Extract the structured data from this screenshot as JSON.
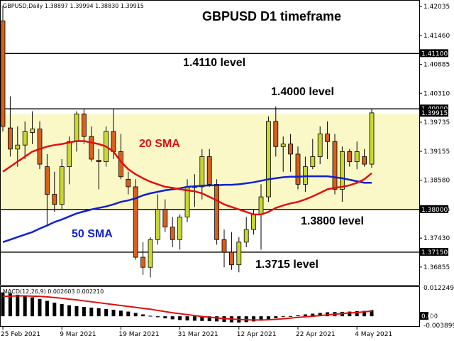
{
  "chart_data": {
    "type": "candlestick",
    "symbol_header": "GBPUSD,Daily  1.38897 1.39994 1.38830 1.39915",
    "title": "GBPUSD D1 timeframe",
    "macd_header": "MACD(12,26,9) 0.002603 0.002210",
    "price_axis_labels": [
      "1.42035",
      "1.41460",
      "1.40885",
      "1.40310",
      "1.39735",
      "1.39155",
      "1.38580",
      "1.38005",
      "1.37430",
      "1.36855"
    ],
    "level_tags": [
      "1.41100",
      "1.40000",
      "1.39915",
      "1.38000",
      "1.37150"
    ],
    "macd_axis_labels": [
      "0.012249",
      "0.00",
      "-0.003899"
    ],
    "date_labels": [
      "25 Feb 2021",
      "9 Mar 2021",
      "19 Mar 2021",
      "31 Mar 2021",
      "12 Apr 2021",
      "22 Apr 2021",
      "4 May 2021"
    ],
    "date_label_index": [
      0,
      8,
      16,
      24,
      32,
      40,
      48
    ],
    "ylim": [
      1.365,
      1.4215
    ],
    "macd_ylim": [
      -0.0042,
      0.0125
    ],
    "zone": [
      1.38,
      1.399
    ],
    "levels": [
      {
        "value": 1.411,
        "text": "1.4110 level"
      },
      {
        "value": 1.4,
        "text": "1.4000 level"
      },
      {
        "value": 1.38,
        "text": "1.3800 level"
      },
      {
        "value": 1.3715,
        "text": "1.3715 level"
      }
    ],
    "sma_labels": {
      "sma20": "20 SMA",
      "sma50": "50 SMA"
    },
    "colors": {
      "bull": "#c8d830",
      "bear": "#d8601c",
      "sma20": "#e01010",
      "sma50": "#1020d0",
      "zone": "#fbf8c8"
    },
    "candles": [
      {
        "o": 1.4175,
        "h": 1.4205,
        "l": 1.3955,
        "c": 1.3965
      },
      {
        "o": 1.3962,
        "h": 1.4025,
        "l": 1.3905,
        "c": 1.392
      },
      {
        "o": 1.392,
        "h": 1.3965,
        "l": 1.3885,
        "c": 1.3928
      },
      {
        "o": 1.3928,
        "h": 1.3975,
        "l": 1.39,
        "c": 1.3955
      },
      {
        "o": 1.3953,
        "h": 1.3995,
        "l": 1.393,
        "c": 1.396
      },
      {
        "o": 1.396,
        "h": 1.3975,
        "l": 1.388,
        "c": 1.389
      },
      {
        "o": 1.3885,
        "h": 1.391,
        "l": 1.377,
        "c": 1.383
      },
      {
        "o": 1.383,
        "h": 1.3875,
        "l": 1.3795,
        "c": 1.381
      },
      {
        "o": 1.381,
        "h": 1.39,
        "l": 1.38,
        "c": 1.3885
      },
      {
        "o": 1.3885,
        "h": 1.3945,
        "l": 1.385,
        "c": 1.3935
      },
      {
        "o": 1.3935,
        "h": 1.3995,
        "l": 1.3915,
        "c": 1.399
      },
      {
        "o": 1.399,
        "h": 1.4,
        "l": 1.393,
        "c": 1.3945
      },
      {
        "o": 1.3945,
        "h": 1.3965,
        "l": 1.3895,
        "c": 1.39
      },
      {
        "o": 1.3898,
        "h": 1.392,
        "l": 1.384,
        "c": 1.3895
      },
      {
        "o": 1.3895,
        "h": 1.3965,
        "l": 1.3885,
        "c": 1.3955
      },
      {
        "o": 1.3955,
        "h": 1.4,
        "l": 1.39,
        "c": 1.3915
      },
      {
        "o": 1.3915,
        "h": 1.395,
        "l": 1.386,
        "c": 1.3865
      },
      {
        "o": 1.386,
        "h": 1.3875,
        "l": 1.383,
        "c": 1.3845
      },
      {
        "o": 1.3845,
        "h": 1.386,
        "l": 1.37,
        "c": 1.3705
      },
      {
        "o": 1.3705,
        "h": 1.3735,
        "l": 1.367,
        "c": 1.3685
      },
      {
        "o": 1.3685,
        "h": 1.3745,
        "l": 1.3665,
        "c": 1.374
      },
      {
        "o": 1.374,
        "h": 1.383,
        "l": 1.373,
        "c": 1.38
      },
      {
        "o": 1.38,
        "h": 1.382,
        "l": 1.3755,
        "c": 1.3765
      },
      {
        "o": 1.3765,
        "h": 1.3785,
        "l": 1.3725,
        "c": 1.374
      },
      {
        "o": 1.374,
        "h": 1.379,
        "l": 1.372,
        "c": 1.3785
      },
      {
        "o": 1.3785,
        "h": 1.386,
        "l": 1.3775,
        "c": 1.3845
      },
      {
        "o": 1.3845,
        "h": 1.387,
        "l": 1.3805,
        "c": 1.3845
      },
      {
        "o": 1.3845,
        "h": 1.392,
        "l": 1.382,
        "c": 1.3905
      },
      {
        "o": 1.3905,
        "h": 1.392,
        "l": 1.3845,
        "c": 1.385
      },
      {
        "o": 1.385,
        "h": 1.386,
        "l": 1.373,
        "c": 1.374
      },
      {
        "o": 1.374,
        "h": 1.376,
        "l": 1.3685,
        "c": 1.3715
      },
      {
        "o": 1.3715,
        "h": 1.3755,
        "l": 1.368,
        "c": 1.369
      },
      {
        "o": 1.369,
        "h": 1.3745,
        "l": 1.3675,
        "c": 1.3735
      },
      {
        "o": 1.3735,
        "h": 1.3785,
        "l": 1.3725,
        "c": 1.376
      },
      {
        "o": 1.376,
        "h": 1.38,
        "l": 1.375,
        "c": 1.379
      },
      {
        "o": 1.379,
        "h": 1.385,
        "l": 1.372,
        "c": 1.3825
      },
      {
        "o": 1.3825,
        "h": 1.3985,
        "l": 1.3815,
        "c": 1.3975
      },
      {
        "o": 1.3975,
        "h": 1.4005,
        "l": 1.3905,
        "c": 1.3925
      },
      {
        "o": 1.3925,
        "h": 1.3945,
        "l": 1.3875,
        "c": 1.393
      },
      {
        "o": 1.393,
        "h": 1.395,
        "l": 1.3875,
        "c": 1.391
      },
      {
        "o": 1.391,
        "h": 1.3925,
        "l": 1.384,
        "c": 1.385
      },
      {
        "o": 1.385,
        "h": 1.3905,
        "l": 1.3835,
        "c": 1.3885
      },
      {
        "o": 1.3885,
        "h": 1.394,
        "l": 1.388,
        "c": 1.3905
      },
      {
        "o": 1.3905,
        "h": 1.3965,
        "l": 1.389,
        "c": 1.395
      },
      {
        "o": 1.395,
        "h": 1.3975,
        "l": 1.39,
        "c": 1.3935
      },
      {
        "o": 1.3935,
        "h": 1.395,
        "l": 1.383,
        "c": 1.384
      },
      {
        "o": 1.384,
        "h": 1.3925,
        "l": 1.3815,
        "c": 1.3915
      },
      {
        "o": 1.3915,
        "h": 1.392,
        "l": 1.3885,
        "c": 1.3895
      },
      {
        "o": 1.3895,
        "h": 1.3935,
        "l": 1.388,
        "c": 1.3915
      },
      {
        "o": 1.3905,
        "h": 1.392,
        "l": 1.3885,
        "c": 1.389
      },
      {
        "o": 1.389,
        "h": 1.3999,
        "l": 1.3883,
        "c": 1.3992
      }
    ],
    "sma20": [
      1.3875,
      1.3885,
      1.3895,
      1.3905,
      1.3915,
      1.392,
      1.3925,
      1.3928,
      1.393,
      1.3933,
      1.3936,
      1.3936,
      1.3933,
      1.393,
      1.3925,
      1.3915,
      1.3895,
      1.388,
      1.387,
      1.3862,
      1.3855,
      1.385,
      1.3845,
      1.3843,
      1.384,
      1.3838,
      1.3836,
      1.3832,
      1.3825,
      1.3818,
      1.381,
      1.3805,
      1.38,
      1.3795,
      1.379,
      1.379,
      1.3795,
      1.3803,
      1.3808,
      1.3812,
      1.3815,
      1.382,
      1.3826,
      1.3833,
      1.384,
      1.3843,
      1.3845,
      1.3848,
      1.3853,
      1.386,
      1.3872
    ],
    "sma50": [
      1.3735,
      1.374,
      1.3745,
      1.375,
      1.3755,
      1.3762,
      1.3768,
      1.3775,
      1.378,
      1.3786,
      1.3792,
      1.3796,
      1.38,
      1.3803,
      1.3806,
      1.381,
      1.3815,
      1.3818,
      1.3822,
      1.3828,
      1.3832,
      1.3835,
      1.3838,
      1.384,
      1.3842,
      1.3845,
      1.3846,
      1.3847,
      1.3848,
      1.3848,
      1.3849,
      1.3849,
      1.385,
      1.3852,
      1.3854,
      1.3857,
      1.386,
      1.3862,
      1.3864,
      1.3865,
      1.3865,
      1.3866,
      1.3866,
      1.3866,
      1.3866,
      1.3864,
      1.3862,
      1.3859,
      1.3856,
      1.3853,
      1.3853
    ],
    "macd_hist": [
      0.0102,
      0.0098,
      0.0092,
      0.0086,
      0.0081,
      0.0074,
      0.0066,
      0.0058,
      0.0052,
      0.0047,
      0.0043,
      0.004,
      0.0037,
      0.0034,
      0.0031,
      0.0028,
      0.0024,
      0.002,
      0.0014,
      0.0008,
      0.0002,
      -0.0004,
      -0.0009,
      -0.0013,
      -0.0016,
      -0.0018,
      -0.0019,
      -0.002,
      -0.0021,
      -0.0022,
      -0.0024,
      -0.0026,
      -0.0027,
      -0.0025,
      -0.0022,
      -0.0019,
      -0.0013,
      -0.0008,
      -0.0003,
      0.0001,
      0.0004,
      0.0008,
      0.0011,
      0.0014,
      0.0017,
      0.0018,
      0.0019,
      0.002,
      0.0022,
      0.0023,
      0.0026
    ],
    "macd_signal": [
      0.0085,
      0.0086,
      0.0087,
      0.0087,
      0.0086,
      0.0085,
      0.0083,
      0.008,
      0.0077,
      0.0073,
      0.007,
      0.0066,
      0.0062,
      0.0058,
      0.0054,
      0.005,
      0.0046,
      0.0042,
      0.0038,
      0.0034,
      0.003,
      0.0025,
      0.002,
      0.0015,
      0.0011,
      0.0007,
      0.0003,
      -0.0001,
      -0.0004,
      -0.0007,
      -0.001,
      -0.0012,
      -0.0014,
      -0.0015,
      -0.0016,
      -0.0016,
      -0.0015,
      -0.0013,
      -0.0011,
      -0.0008,
      -0.0005,
      -0.0002,
      0.0,
      0.0003,
      0.0006,
      0.0009,
      0.0012,
      0.0014,
      0.0016,
      0.0019,
      0.0022
    ]
  }
}
